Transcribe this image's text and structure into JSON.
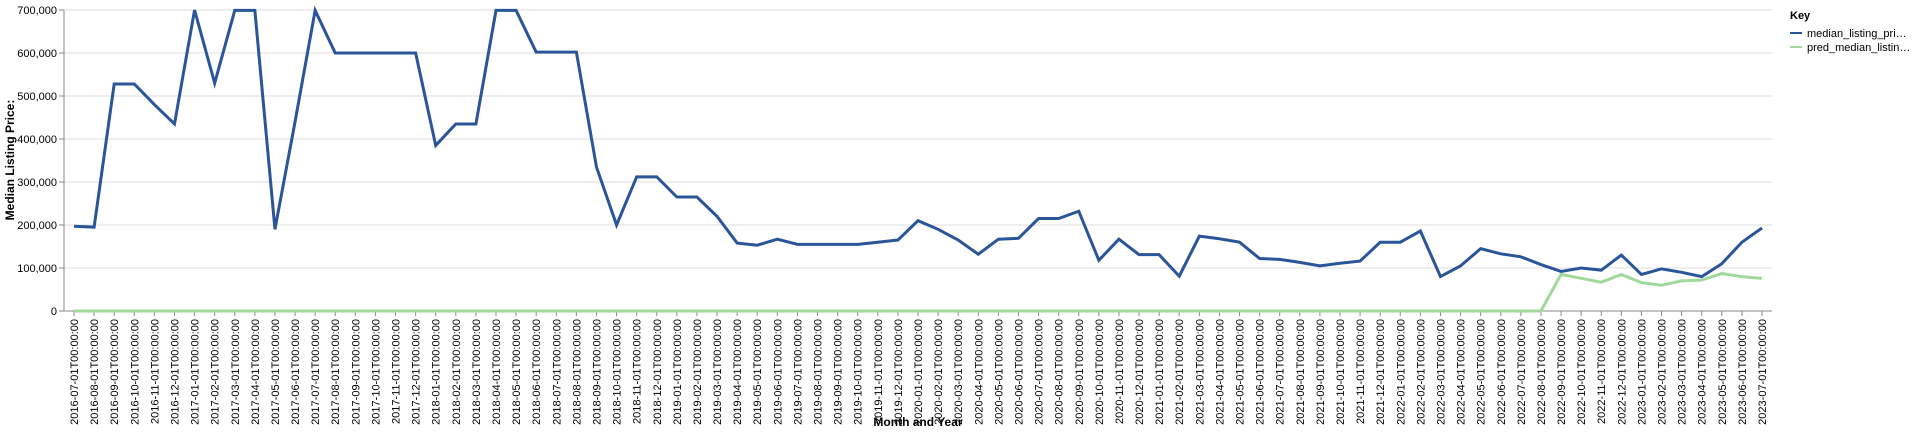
{
  "chart_data": {
    "type": "line",
    "x_label": "Month and Year",
    "y_label": "Median Listing Price:",
    "legend_title": "Key",
    "legend_position": "right",
    "grid": true,
    "categories": [
      "2016-07-01T00:00:00",
      "2016-08-01T00:00:00",
      "2016-09-01T00:00:00",
      "2016-10-01T00:00:00",
      "2016-11-01T00:00:00",
      "2016-12-01T00:00:00",
      "2017-01-01T00:00:00",
      "2017-02-01T00:00:00",
      "2017-03-01T00:00:00",
      "2017-04-01T00:00:00",
      "2017-05-01T00:00:00",
      "2017-06-01T00:00:00",
      "2017-07-01T00:00:00",
      "2017-08-01T00:00:00",
      "2017-09-01T00:00:00",
      "2017-10-01T00:00:00",
      "2017-11-01T00:00:00",
      "2017-12-01T00:00:00",
      "2018-01-01T00:00:00",
      "2018-02-01T00:00:00",
      "2018-03-01T00:00:00",
      "2018-04-01T00:00:00",
      "2018-05-01T00:00:00",
      "2018-06-01T00:00:00",
      "2018-07-01T00:00:00",
      "2018-08-01T00:00:00",
      "2018-09-01T00:00:00",
      "2018-10-01T00:00:00",
      "2018-11-01T00:00:00",
      "2018-12-01T00:00:00",
      "2019-01-01T00:00:00",
      "2019-02-01T00:00:00",
      "2019-03-01T00:00:00",
      "2019-04-01T00:00:00",
      "2019-05-01T00:00:00",
      "2019-06-01T00:00:00",
      "2019-07-01T00:00:00",
      "2019-08-01T00:00:00",
      "2019-09-01T00:00:00",
      "2019-10-01T00:00:00",
      "2019-11-01T00:00:00",
      "2019-12-01T00:00:00",
      "2020-01-01T00:00:00",
      "2020-02-01T00:00:00",
      "2020-03-01T00:00:00",
      "2020-04-01T00:00:00",
      "2020-05-01T00:00:00",
      "2020-06-01T00:00:00",
      "2020-07-01T00:00:00",
      "2020-08-01T00:00:00",
      "2020-09-01T00:00:00",
      "2020-10-01T00:00:00",
      "2020-11-01T00:00:00",
      "2020-12-01T00:00:00",
      "2021-01-01T00:00:00",
      "2021-02-01T00:00:00",
      "2021-03-01T00:00:00",
      "2021-04-01T00:00:00",
      "2021-05-01T00:00:00",
      "2021-06-01T00:00:00",
      "2021-07-01T00:00:00",
      "2021-08-01T00:00:00",
      "2021-09-01T00:00:00",
      "2021-10-01T00:00:00",
      "2021-11-01T00:00:00",
      "2021-12-01T00:00:00",
      "2022-01-01T00:00:00",
      "2022-02-01T00:00:00",
      "2022-03-01T00:00:00",
      "2022-04-01T00:00:00",
      "2022-05-01T00:00:00",
      "2022-06-01T00:00:00",
      "2022-07-01T00:00:00",
      "2022-08-01T00:00:00",
      "2022-09-01T00:00:00",
      "2022-10-01T00:00:00",
      "2022-11-01T00:00:00",
      "2022-12-01T00:00:00",
      "2023-01-01T00:00:00",
      "2023-02-01T00:00:00",
      "2023-03-01T00:00:00",
      "2023-04-01T00:00:00",
      "2023-05-01T00:00:00",
      "2023-06-01T00:00:00",
      "2023-07-01T00:00:00"
    ],
    "series": [
      {
        "name": "median_listing_pri…",
        "color": "#2a5599",
        "values": [
          197000,
          195000,
          528000,
          528000,
          480000,
          435000,
          700000,
          530000,
          699000,
          699000,
          190000,
          440000,
          699000,
          600000,
          600000,
          600000,
          600000,
          600000,
          385000,
          435000,
          435000,
          699000,
          699000,
          602000,
          602000,
          602000,
          335000,
          200000,
          312000,
          312000,
          265000,
          265000,
          220000,
          158000,
          153000,
          167000,
          155000,
          155000,
          155000,
          155000,
          160000,
          165000,
          210000,
          190000,
          165000,
          132000,
          167000,
          169000,
          215000,
          215000,
          232000,
          118000,
          167000,
          131000,
          131000,
          81000,
          174000,
          168000,
          160000,
          122000,
          120000,
          113000,
          105000,
          111000,
          116000,
          160000,
          160000,
          186000,
          80000,
          105000,
          145000,
          133000,
          126000,
          108000,
          92000,
          100000,
          95000,
          130000,
          85000,
          98000,
          90000,
          80000,
          110000,
          160000,
          193000
        ]
      },
      {
        "name": "pred_median_listin…",
        "color": "#a1d99b",
        "values": [
          0,
          0,
          0,
          0,
          0,
          0,
          0,
          0,
          0,
          0,
          0,
          0,
          0,
          0,
          0,
          0,
          0,
          0,
          0,
          0,
          0,
          0,
          0,
          0,
          0,
          0,
          0,
          0,
          0,
          0,
          0,
          0,
          0,
          0,
          0,
          0,
          0,
          0,
          0,
          0,
          0,
          0,
          0,
          0,
          0,
          0,
          0,
          0,
          0,
          0,
          0,
          0,
          0,
          0,
          0,
          0,
          0,
          0,
          0,
          0,
          0,
          0,
          0,
          0,
          0,
          0,
          0,
          0,
          0,
          0,
          0,
          0,
          0,
          0,
          85000,
          76000,
          67000,
          85000,
          66000,
          60000,
          70000,
          72000,
          87000,
          80000,
          76000
        ]
      }
    ],
    "ylim": [
      0,
      700000
    ],
    "yticks": [
      0,
      {
        "value": 100000,
        "label": "100,000"
      },
      {
        "value": 200000,
        "label": "200,000"
      },
      {
        "value": 300000,
        "label": "300,000"
      },
      {
        "value": 400000,
        "label": "400,000"
      },
      {
        "value": 500000,
        "label": "500,000"
      },
      {
        "value": 600000,
        "label": "600,000"
      },
      {
        "value": 700000,
        "label": "700,000"
      }
    ]
  }
}
